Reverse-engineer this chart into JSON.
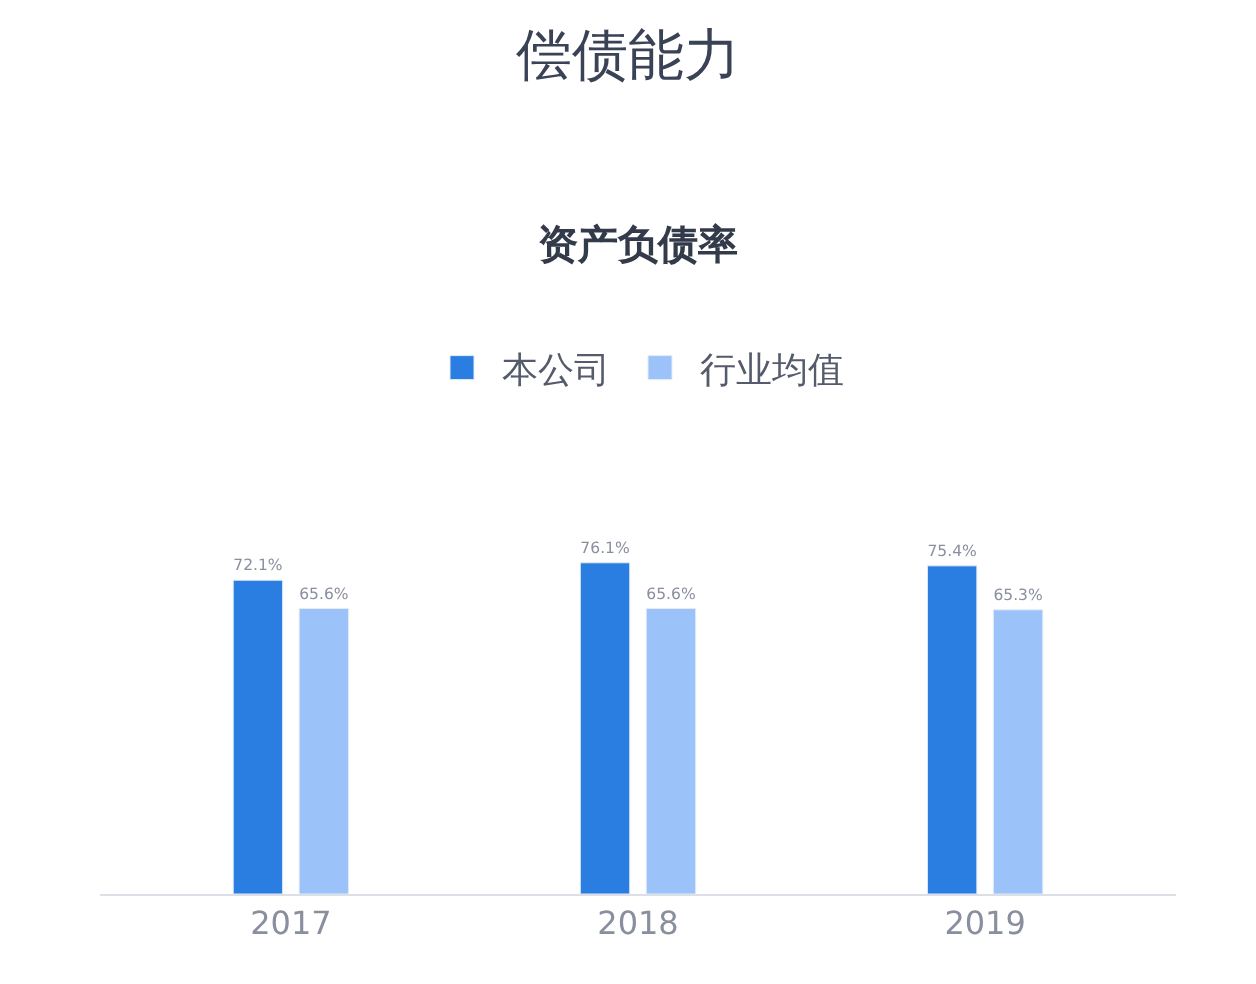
{
  "chart_data": {
    "type": "bar",
    "title": "偿债能力",
    "subtitle": "资产负债率",
    "categories": [
      "2017",
      "2018",
      "2019"
    ],
    "series": [
      {
        "name": "本公司",
        "color": "#2a7de1",
        "values": [
          72.1,
          76.1,
          75.4
        ],
        "value_labels": [
          "72.1%",
          "76.1%",
          "75.4%"
        ]
      },
      {
        "name": "行业均值",
        "color": "#9cc3f9",
        "values": [
          65.6,
          65.6,
          65.3
        ],
        "value_labels": [
          "65.6%",
          "65.6%",
          "65.3%"
        ]
      }
    ],
    "legend": "top"
  }
}
